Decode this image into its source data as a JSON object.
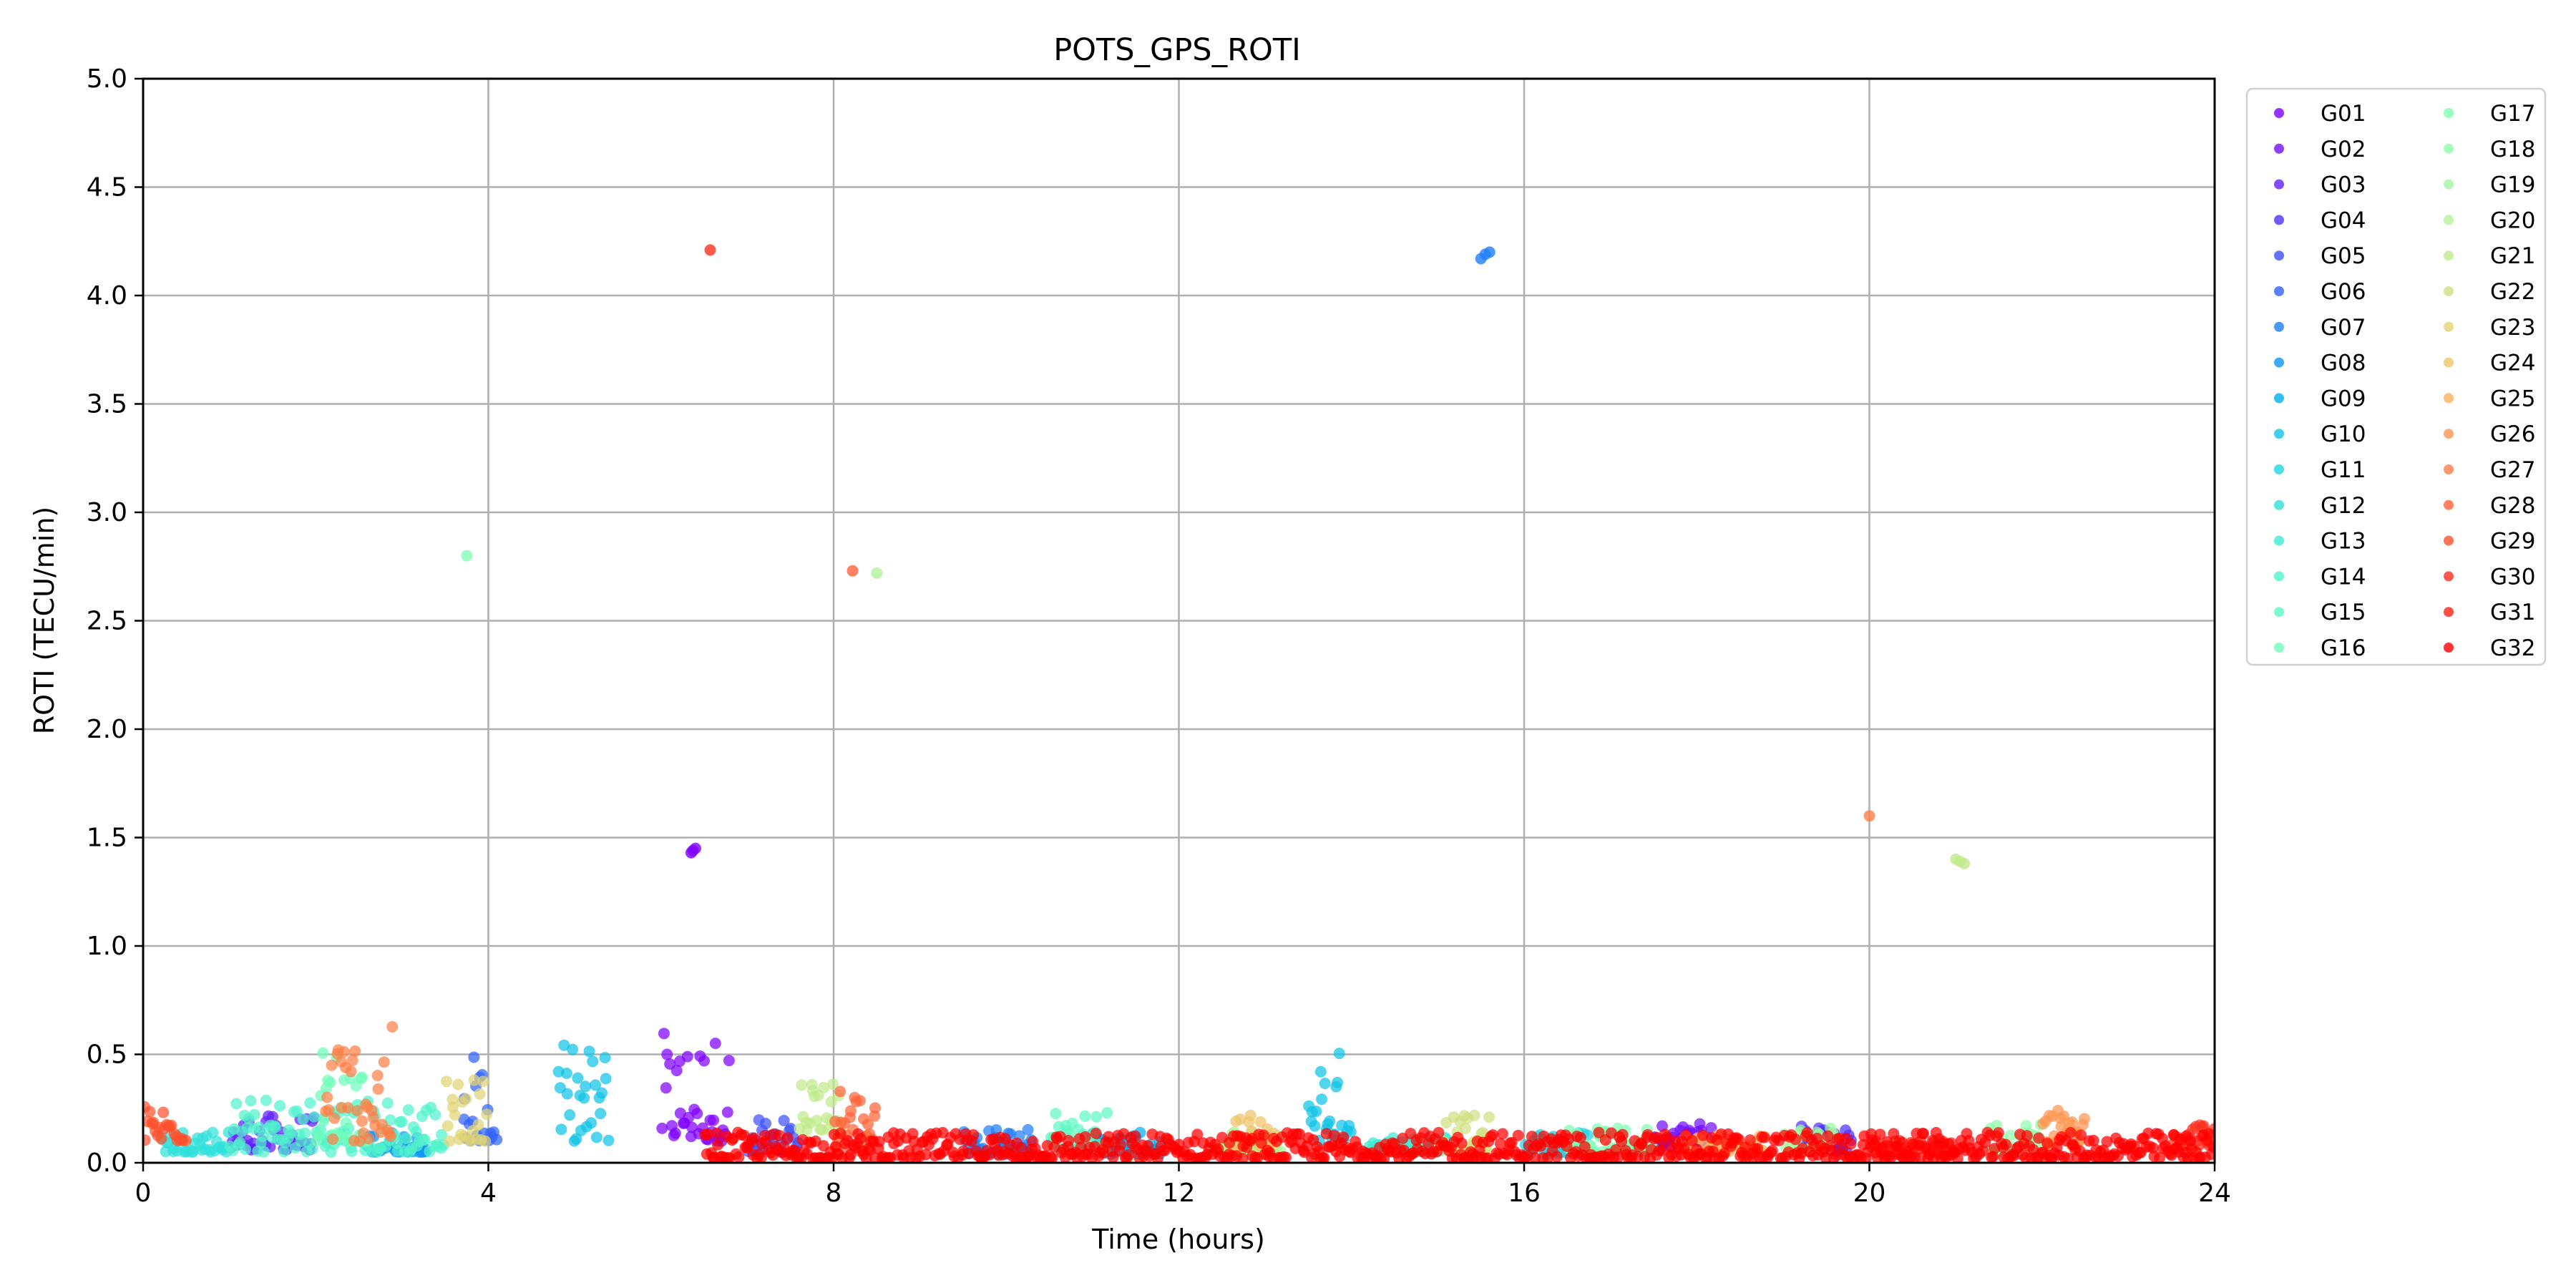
{
  "chart_data": {
    "type": "scatter",
    "title": "POTS_GPS_ROTI",
    "xlabel": "Time (hours)",
    "ylabel": "ROTI (TECU/min)",
    "xlim": [
      0,
      24
    ],
    "ylim": [
      0,
      5
    ],
    "xticks": [
      0,
      4,
      8,
      12,
      16,
      20,
      24
    ],
    "xtick_labels": [
      "0",
      "4",
      "8",
      "12",
      "16",
      "20",
      "24"
    ],
    "yticks": [
      0,
      0.5,
      1,
      1.5,
      2,
      2.5,
      3,
      3.5,
      4,
      4.5,
      5
    ],
    "ytick_labels": [
      "0.0",
      "0.5",
      "1.0",
      "1.5",
      "2.0",
      "2.5",
      "3.0",
      "3.5",
      "4.0",
      "4.5",
      "5.0"
    ],
    "grid": true,
    "legend_position": "outside-right-top",
    "legend_columns": 2,
    "series": [
      {
        "name": "G01",
        "color": "#8000ff",
        "segments": [
          [
            6.0,
            6.8,
            0.1,
            0.6
          ]
        ],
        "points": [
          [
            6.35,
            1.43
          ],
          [
            6.4,
            1.45
          ],
          [
            6.37,
            1.44
          ]
        ]
      },
      {
        "name": "G02",
        "color": "#7010ff",
        "segments": [
          [
            17.5,
            18.2,
            0.05,
            0.18
          ]
        ],
        "points": []
      },
      {
        "name": "G03",
        "color": "#6020ff",
        "segments": [
          [
            1.0,
            2.0,
            0.06,
            0.22
          ]
        ],
        "points": []
      },
      {
        "name": "G04",
        "color": "#5030fe",
        "segments": [
          [
            19.2,
            19.8,
            0.05,
            0.17
          ]
        ],
        "points": []
      },
      {
        "name": "G05",
        "color": "#4050fc",
        "segments": [
          [
            7.0,
            7.6,
            0.05,
            0.2
          ]
        ],
        "points": []
      },
      {
        "name": "G06",
        "color": "#3064fa",
        "segments": [
          [
            3.7,
            4.1,
            0.1,
            0.5
          ]
        ],
        "points": []
      },
      {
        "name": "G07",
        "color": "#2080f7",
        "segments": [
          [
            9.5,
            10.3,
            0.04,
            0.16
          ]
        ],
        "points": [
          [
            15.5,
            4.17
          ],
          [
            15.55,
            4.19
          ],
          [
            15.6,
            4.2
          ]
        ]
      },
      {
        "name": "G08",
        "color": "#1096f3",
        "segments": [
          [
            2.6,
            3.3,
            0.05,
            0.15
          ]
        ],
        "points": []
      },
      {
        "name": "G09",
        "color": "#00b0ee",
        "segments": [
          [
            11.0,
            11.8,
            0.04,
            0.14
          ]
        ],
        "points": []
      },
      {
        "name": "G10",
        "color": "#10c4e8",
        "segments": [
          [
            4.8,
            5.4,
            0.1,
            0.55
          ],
          [
            13.5,
            14.0,
            0.1,
            0.53
          ]
        ],
        "points": []
      },
      {
        "name": "G11",
        "color": "#20d4e2",
        "segments": [
          [
            16.0,
            16.8,
            0.04,
            0.15
          ]
        ],
        "points": []
      },
      {
        "name": "G12",
        "color": "#30e0db",
        "segments": [
          [
            0.2,
            1.0,
            0.05,
            0.16
          ]
        ],
        "points": []
      },
      {
        "name": "G13",
        "color": "#40ead4",
        "segments": [
          [
            14.2,
            15.2,
            0.05,
            0.12
          ]
        ],
        "points": []
      },
      {
        "name": "G14",
        "color": "#50f2cc",
        "segments": [
          [
            1.0,
            3.5,
            0.05,
            0.3
          ]
        ],
        "points": []
      },
      {
        "name": "G15",
        "color": "#60f8c4",
        "segments": [
          [
            10.5,
            11.2,
            0.06,
            0.24
          ]
        ],
        "points": []
      },
      {
        "name": "G16",
        "color": "#70fcbb",
        "segments": [
          [
            2.0,
            2.6,
            0.1,
            0.55
          ]
        ],
        "points": []
      },
      {
        "name": "G17",
        "color": "#80ffb4",
        "segments": [
          [
            16.5,
            17.5,
            0.05,
            0.16
          ]
        ],
        "points": [
          [
            3.75,
            2.8
          ]
        ]
      },
      {
        "name": "G18",
        "color": "#90fcaa",
        "segments": [
          [
            21.4,
            22.0,
            0.05,
            0.2
          ]
        ],
        "points": []
      },
      {
        "name": "G19",
        "color": "#a0f8a0",
        "segments": [
          [
            19.0,
            19.6,
            0.05,
            0.18
          ]
        ],
        "points": []
      },
      {
        "name": "G20",
        "color": "#b0f296",
        "segments": [
          [
            12.5,
            13.2,
            0.05,
            0.16
          ]
        ],
        "points": [
          [
            8.5,
            2.72
          ]
        ]
      },
      {
        "name": "G21",
        "color": "#c0ea8c",
        "segments": [
          [
            7.6,
            8.1,
            0.15,
            0.42
          ]
        ],
        "points": [
          [
            21.0,
            1.4
          ],
          [
            21.05,
            1.39
          ],
          [
            21.1,
            1.38
          ]
        ]
      },
      {
        "name": "G22",
        "color": "#d0e081",
        "segments": [
          [
            15.0,
            15.6,
            0.06,
            0.22
          ]
        ],
        "points": []
      },
      {
        "name": "G23",
        "color": "#e0d475",
        "segments": [
          [
            3.5,
            4.0,
            0.1,
            0.4
          ]
        ],
        "points": []
      },
      {
        "name": "G24",
        "color": "#f0c46a",
        "segments": [
          [
            12.6,
            13.1,
            0.06,
            0.24
          ]
        ],
        "points": []
      },
      {
        "name": "G25",
        "color": "#ffb05e",
        "segments": [
          [
            17.8,
            18.8,
            0.05,
            0.13
          ]
        ],
        "points": []
      },
      {
        "name": "G26",
        "color": "#ff9652",
        "segments": [
          [
            22.0,
            22.5,
            0.08,
            0.26
          ]
        ],
        "points": []
      },
      {
        "name": "G27",
        "color": "#ff8046",
        "segments": [
          [
            2.1,
            2.9,
            0.1,
            0.63
          ]
        ],
        "points": [
          [
            20.0,
            1.6
          ]
        ]
      },
      {
        "name": "G28",
        "color": "#ff643a",
        "segments": [
          [
            8.0,
            8.5,
            0.05,
            0.36
          ]
        ],
        "points": [
          [
            8.22,
            2.73
          ]
        ]
      },
      {
        "name": "G29",
        "color": "#ff502d",
        "segments": [
          [
            0.0,
            0.5,
            0.1,
            0.27
          ]
        ],
        "points": []
      },
      {
        "name": "G30",
        "color": "#ff3020",
        "segments": [
          [
            23.5,
            24.0,
            0.08,
            0.2
          ]
        ],
        "points": [
          [
            6.57,
            4.21
          ]
        ]
      },
      {
        "name": "G31",
        "color": "#ff2013",
        "segments": [
          [
            20.0,
            21.0,
            0.04,
            0.1
          ]
        ],
        "points": []
      },
      {
        "name": "G32",
        "color": "#ff0000",
        "segments": [
          [
            6.5,
            24.0,
            0.02,
            0.14
          ]
        ],
        "points": []
      }
    ]
  }
}
